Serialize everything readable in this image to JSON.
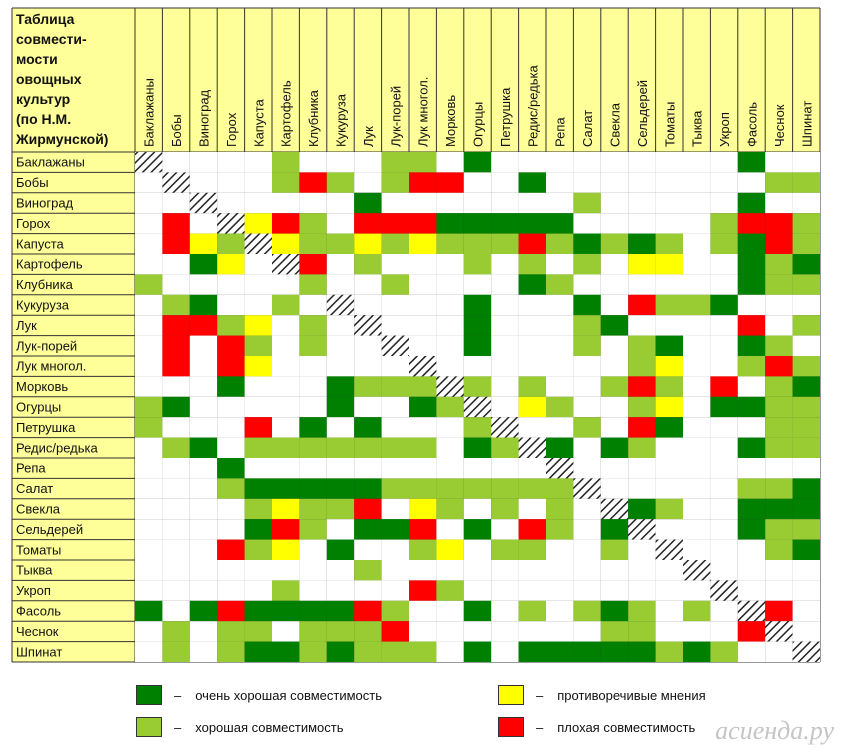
{
  "chart_data": {
    "type": "heatmap",
    "title_lines": [
      "Таблица",
      "совмести-",
      "мости",
      "овощных",
      "культур",
      "(по Н.М.",
      "Жирмунской)"
    ],
    "crops": [
      "Баклажаны",
      "Бобы",
      "Виноград",
      "Горох",
      "Капуста",
      "Картофель",
      "Клубника",
      "Кукуруза",
      "Лук",
      "Лук-порей",
      "Лук многол.",
      "Морковь",
      "Огурцы",
      "Петрушка",
      "Редис/редька",
      "Репа",
      "Салат",
      "Свекла",
      "Сельдерей",
      "Томаты",
      "Тыква",
      "Укроп",
      "Фасоль",
      "Чеснок",
      "Шпинат"
    ],
    "code_legend": {
      "0": "none",
      "1": "good",
      "2": "very_good",
      "3": "contradictory",
      "4": "bad",
      "5": "self"
    },
    "matrix": [
      "5000010001102000000000200",
      "0500014101440020000000011",
      "0050000020000000100000200",
      "0405341044422222000001441",
      "0431531131311141212101241",
      "0023054010001010103300212",
      "1000001001000021000000211",
      "0120010500002000204112000",
      "0441301050002000120000401",
      "0404101005002000101200210",
      "0404300000500000001300141",
      "0002000211151010014104012",
      "1200000200215031001302211",
      "1000402020001500104200011",
      "0120111111102152021000211",
      "0002000000000005000000000",
      "0001222221111111500000112",
      "0000131140310101052100222",
      "0000241022402041025000211",
      "0004130200130110010500012",
      "0000000010000000000050000",
      "0000010000410000000005000",
      "2024222241002010121010540",
      "0101101114000000011000450",
      "0101221211102022222121005"
    ],
    "colors": {
      "good": "#99cc33",
      "very_good": "#008000",
      "contradictory": "#ffff00",
      "bad": "#ff0000",
      "none": "#ffffff",
      "header_bg": "#ffff99",
      "grid_line": "#333333"
    }
  },
  "legend": {
    "items": [
      {
        "key": "very_good",
        "dash": "–",
        "label": "очень хорошая совместимость"
      },
      {
        "key": "contradictory",
        "dash": "–",
        "label": "противоречивые мнения"
      },
      {
        "key": "good",
        "dash": "–",
        "label": "хорошая совместимость"
      },
      {
        "key": "bad",
        "dash": "–",
        "label": "плохая совместимость"
      }
    ]
  },
  "watermark": "асиенда.ру"
}
